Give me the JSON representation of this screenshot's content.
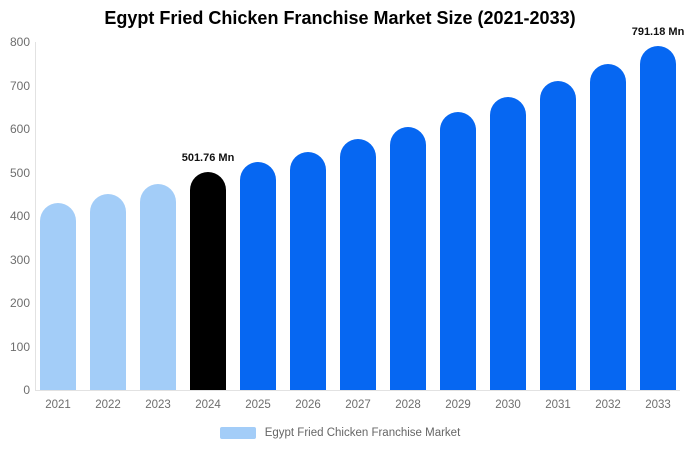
{
  "title": "Egypt Fried Chicken Franchise Market Size (2021-2033)",
  "legend": {
    "label": "Egypt Fried Chicken Franchise Market",
    "swatch_color": "#A3CDF8"
  },
  "colors": {
    "background": "#FFFFFF",
    "title_text": "#000000",
    "axis_text": "#6E6E6E",
    "axis_line": "#E2E2E2",
    "legend_text": "#666666",
    "annotation_text": "#111111",
    "historical_bar": "#A3CDF8",
    "base_year_bar": "#000000",
    "forecast_bar": "#0667F2"
  },
  "chart_data": {
    "type": "bar",
    "title": "Egypt Fried Chicken Franchise Market Size (2021-2033)",
    "unit": "Mn",
    "categories": [
      "2021",
      "2022",
      "2023",
      "2024",
      "2025",
      "2026",
      "2027",
      "2028",
      "2029",
      "2030",
      "2031",
      "2032",
      "2033"
    ],
    "values": [
      430,
      450,
      473,
      501.76,
      525,
      548,
      576,
      605,
      640,
      674,
      711,
      749,
      791.18
    ],
    "bar_colors": [
      "#A3CDF8",
      "#A3CDF8",
      "#A3CDF8",
      "#000000",
      "#0667F2",
      "#0667F2",
      "#0667F2",
      "#0667F2",
      "#0667F2",
      "#0667F2",
      "#0667F2",
      "#0667F2",
      "#0667F2"
    ],
    "palette": {
      "historical": "#A3CDF8",
      "base_year": "#000000",
      "forecast": "#0667F2"
    },
    "data_labels": [
      {
        "category": "2024",
        "text": "501.76 Mn"
      },
      {
        "category": "2033",
        "text": "791.18 Mn"
      }
    ],
    "xlabel": "",
    "ylabel": "",
    "ylim": [
      0,
      800
    ],
    "yticks": [
      0,
      100,
      200,
      300,
      400,
      500,
      600,
      700,
      800
    ],
    "grid": false,
    "legend_position": "bottom",
    "legend_entries": [
      "Egypt Fried Chicken Franchise Market"
    ]
  }
}
